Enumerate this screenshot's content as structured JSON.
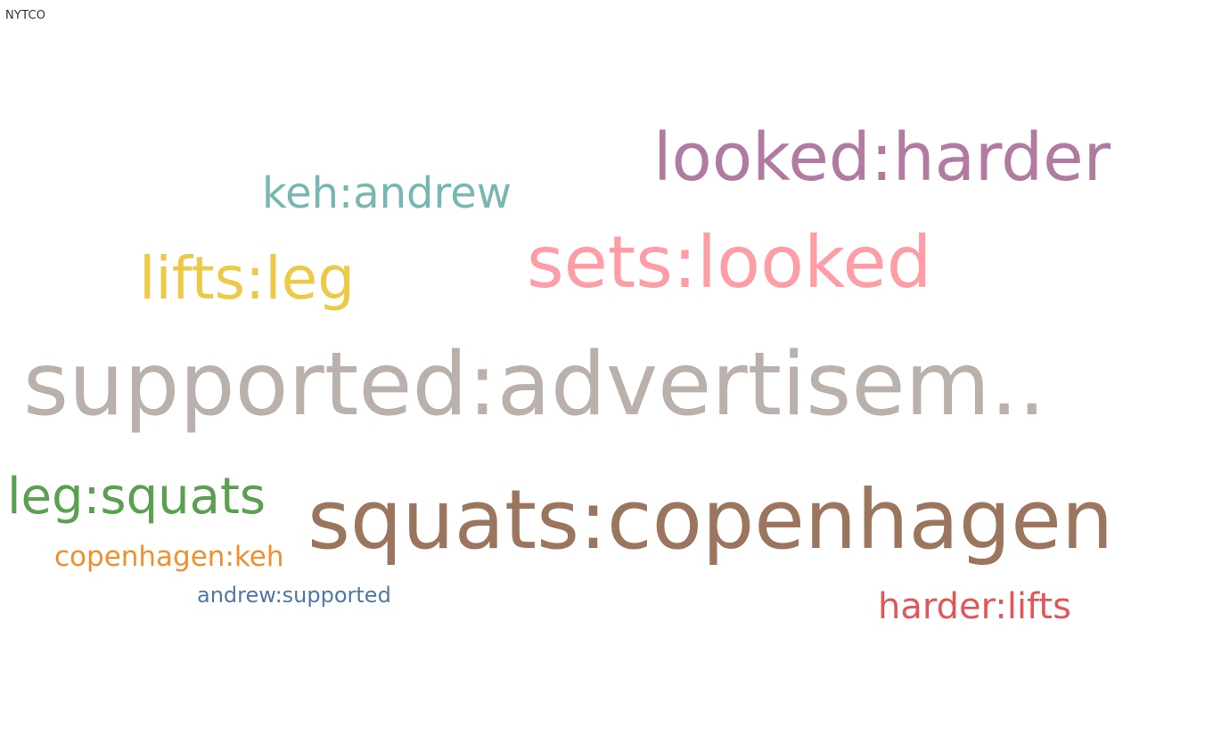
{
  "sheet_title": "NYTCO",
  "chart_data": {
    "type": "word_cloud",
    "title": "NYTCO",
    "words": [
      {
        "text": "supported:advertisem..",
        "rank": 1,
        "color": "#BAB0AC"
      },
      {
        "text": "squats:copenhagen",
        "rank": 2,
        "color": "#9C755F"
      },
      {
        "text": "sets:looked",
        "rank": 3,
        "color": "#FF9DA7"
      },
      {
        "text": "looked:harder",
        "rank": 4,
        "color": "#B07AA1"
      },
      {
        "text": "lifts:leg",
        "rank": 5,
        "color": "#EDC948"
      },
      {
        "text": "leg:squats",
        "rank": 6,
        "color": "#59A14F"
      },
      {
        "text": "keh:andrew",
        "rank": 7,
        "color": "#76B7B2"
      },
      {
        "text": "harder:lifts",
        "rank": 8,
        "color": "#E15759"
      },
      {
        "text": "copenhagen:keh",
        "rank": 9,
        "color": "#F28E2B"
      },
      {
        "text": "andrew:supported",
        "rank": 10,
        "color": "#4E79A7"
      }
    ]
  }
}
